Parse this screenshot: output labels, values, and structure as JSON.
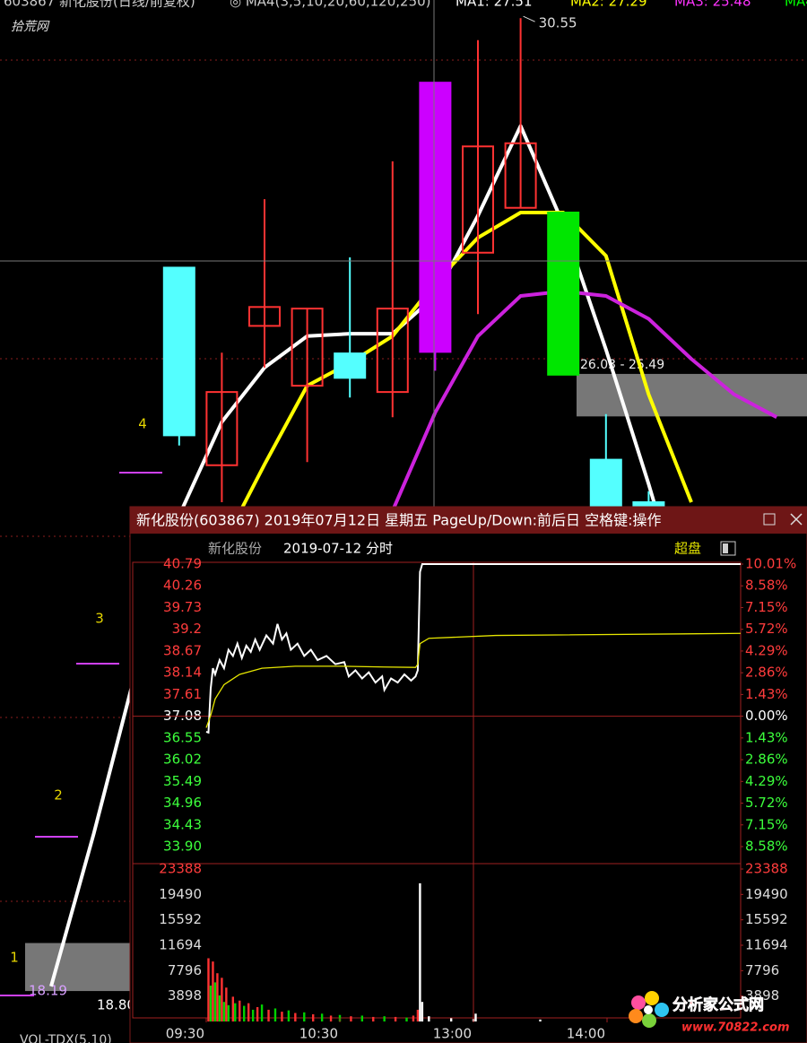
{
  "header": {
    "stock": "603867 新化股份(日线/前复权)",
    "params": "◎ MA4(3,5,10,20,60,120,250)",
    "ma1": "MA1: 27.51",
    "ma2": "MA2: 27.29",
    "ma3": "MA3: 25.48",
    "ma4": "MA4"
  },
  "watermark": "拾荒网",
  "indicator": "VOL-TDX(5,10)",
  "popup": {
    "title": "新化股份(603867) 2019年07月12日 星期五 PageUp/Down:前后日 空格键:操作",
    "stock": "新化股份",
    "date": "2019-07-12 分时",
    "button": "超盘"
  },
  "logo": {
    "name": "分析家公式网",
    "url": "www.70822.com"
  },
  "chart_data": [
    {
      "type": "candlestick",
      "categories": [
        null,
        null,
        null,
        null,
        null,
        null,
        null,
        null,
        null,
        null,
        null,
        null,
        null,
        null,
        null,
        null,
        null,
        null
      ],
      "open": [
        null,
        null,
        null,
        27.38,
        24.87,
        26.64,
        25.88,
        26.29,
        25.8,
        26.31,
        27.57,
        28.14,
        28.08,
        24.94,
        24.4,
        null,
        null,
        null
      ],
      "high": [
        null,
        null,
        null,
        27.38,
        26.3,
        28.25,
        26.86,
        27.51,
        28.73,
        29.73,
        30.27,
        30.55,
        28.08,
        25.52,
        24.54,
        null,
        null,
        null
      ],
      "low": [
        null,
        null,
        null,
        25.12,
        24.4,
        26.11,
        24.91,
        25.73,
        25.48,
        26.07,
        26.79,
        28.14,
        26.02,
        24.2,
        23.8,
        null,
        null,
        null
      ],
      "close": [
        null,
        null,
        null,
        25.25,
        25.8,
        26.88,
        26.86,
        25.98,
        26.86,
        29.73,
        28.92,
        28.96,
        26.02,
        24.2,
        23.9,
        null,
        null,
        null
      ],
      "candle_colors": [
        null,
        null,
        null,
        "#54ffff",
        "#ff3232",
        "#ff3232",
        "#ff3232",
        "#54ffff",
        "#ff3232",
        "#cc00ff",
        "#ff3232",
        "#ff3232",
        "#00e600",
        "#54ffff",
        "#54ffff",
        null,
        null,
        null
      ],
      "series": [
        {
          "color": "#ffffff",
          "values": [
            18.25,
            20.19,
            22.29,
            24.23,
            25.42,
            26.11,
            26.51,
            26.54,
            26.54,
            27.02,
            28.04,
            29.18,
            27.93,
            26.34,
            24.63,
            22.8,
            null,
            null
          ]
        },
        {
          "color": "#ffff00",
          "values": [
            null,
            null,
            null,
            null,
            23.83,
            24.88,
            25.88,
            26.17,
            26.51,
            27.19,
            27.76,
            28.08,
            28.08,
            27.53,
            25.77,
            24.4,
            null,
            null
          ]
        },
        {
          "color": "#cc22dd",
          "values": [
            null,
            null,
            null,
            null,
            null,
            null,
            null,
            null,
            24.29,
            25.54,
            26.51,
            27.02,
            27.08,
            27.02,
            26.73,
            26.22,
            25.77,
            25.48
          ]
        }
      ],
      "ylim": [
        17.53,
        30.78
      ],
      "annotations": [
        {
          "text": "30.55",
          "value": 30.55
        }
      ],
      "zones": [
        {
          "high": 26.03,
          "low": 25.49,
          "label": "26.03 - 25.49"
        },
        {
          "high": 18.8,
          "low": 18.19,
          "label_low": "18.19",
          "label_high": "18.80"
        }
      ],
      "markers": [
        {
          "label": "1"
        },
        {
          "label": "2"
        },
        {
          "label": "3"
        },
        {
          "label": "4"
        }
      ]
    },
    {
      "type": "line",
      "series": [
        {
          "color": "#ffffff",
          "x": [
            0,
            1,
            2,
            3,
            4,
            6,
            8,
            10,
            12,
            14,
            16,
            18,
            20,
            22,
            24,
            27,
            30,
            32,
            34,
            36,
            38,
            41,
            44,
            47,
            50,
            54,
            58,
            62,
            64,
            67,
            70,
            73,
            76,
            79,
            80,
            83,
            86,
            89,
            92,
            94,
            95,
            96,
            97,
            240
          ],
          "values": [
            36.7,
            36.68,
            37.75,
            38.25,
            38.1,
            38.45,
            38.25,
            38.7,
            38.55,
            38.85,
            38.5,
            38.8,
            38.65,
            38.95,
            38.7,
            39.05,
            38.85,
            39.33,
            38.95,
            39.1,
            38.7,
            38.85,
            38.55,
            38.7,
            38.45,
            38.55,
            38.35,
            38.4,
            38.05,
            38.2,
            38.0,
            38.15,
            37.9,
            38.05,
            37.72,
            38.0,
            37.9,
            38.1,
            37.95,
            38.05,
            38.2,
            40.6,
            40.79,
            40.79
          ]
        },
        {
          "color": "#e6e600",
          "x": [
            0,
            2,
            4,
            8,
            15,
            25,
            40,
            60,
            80,
            94,
            95,
            96,
            100,
            130,
            240
          ],
          "values": [
            36.8,
            37.1,
            37.5,
            37.85,
            38.1,
            38.25,
            38.3,
            38.3,
            38.28,
            38.27,
            38.35,
            38.85,
            38.98,
            39.05,
            39.1
          ]
        }
      ],
      "xlim": [
        0,
        240
      ],
      "ylim": [
        33.9,
        40.79
      ],
      "prev_close": 37.08,
      "yticks": [
        40.79,
        40.26,
        39.73,
        39.2,
        {
          "value": 38.67,
          "label": "38.67"
        },
        38.14,
        37.61,
        37.08,
        36.55,
        36.02,
        35.49,
        34.96,
        34.43,
        {
          "value": 33.9,
          "label": "33.90"
        }
      ],
      "y2lim": [
        -8.58,
        10.01
      ],
      "y2ticks": [
        {
          "value": 10.01,
          "label": "10.01%"
        },
        {
          "value": 8.58,
          "label": "8.58%"
        },
        {
          "value": 7.15,
          "label": "7.15%"
        },
        {
          "value": 5.72,
          "label": "5.72%"
        },
        {
          "value": 4.29,
          "label": "4.29%"
        },
        {
          "value": 2.86,
          "label": "2.86%"
        },
        {
          "value": 1.43,
          "label": "1.43%"
        },
        {
          "value": 0,
          "label": "0.00%"
        },
        {
          "value": -1.43,
          "label": "1.43%"
        },
        {
          "value": -2.86,
          "label": "2.86%"
        },
        {
          "value": -4.29,
          "label": "4.29%"
        },
        {
          "value": -5.72,
          "label": "5.72%"
        },
        {
          "value": -7.15,
          "label": "7.15%"
        },
        {
          "value": -8.58,
          "label": "8.58%"
        }
      ]
    },
    {
      "type": "bar",
      "x": [
        1,
        2,
        3,
        4,
        5,
        6,
        7,
        8,
        9,
        10,
        12,
        13,
        15,
        17,
        19,
        21,
        23,
        25,
        28,
        31,
        34,
        37,
        40,
        44,
        48,
        52,
        56,
        60,
        65,
        70,
        75,
        80,
        85,
        90,
        93,
        95,
        96,
        97,
        100,
        110,
        120,
        121,
        150,
        200
      ],
      "values": [
        9700,
        5500,
        9200,
        6000,
        7400,
        4000,
        6700,
        3000,
        5200,
        2500,
        3800,
        2800,
        3200,
        2400,
        2800,
        1800,
        2200,
        2600,
        1800,
        2000,
        1500,
        1700,
        1300,
        1400,
        1100,
        1200,
        900,
        1000,
        800,
        900,
        700,
        800,
        700,
        600,
        900,
        1800,
        21200,
        3000,
        800,
        500,
        400,
        1200,
        300,
        300
      ],
      "colors": [
        "#ff3232",
        "#00d200",
        "#ff3232",
        "#00d200",
        "#ff3232",
        "#00d200",
        "#ff3232",
        "#00d200",
        "#ff3232",
        "#00d200",
        "#ff3232",
        "#00d200",
        "#ff3232",
        "#00d200",
        "#ff3232",
        "#00d200",
        "#ff3232",
        "#00d200",
        "#ff3232",
        "#00d200",
        "#ff3232",
        "#00d200",
        "#ff3232",
        "#00d200",
        "#ff3232",
        "#00d200",
        "#ff3232",
        "#00d200",
        "#ff3232",
        "#00d200",
        "#ff3232",
        "#00d200",
        "#ff3232",
        "#00d200",
        "#ff3232",
        "#ff3232",
        "#ffffff",
        "#ffffff",
        "#ffffff",
        "#ffffff",
        "#ffffff",
        "#ffffff",
        "#ffffff",
        "#ffffff"
      ],
      "xlim": [
        0,
        240
      ],
      "ylim": [
        0,
        23388
      ],
      "yticks": [
        23388,
        19490,
        15592,
        11694,
        7796,
        3898
      ],
      "xticks": [
        {
          "value": 0,
          "label": "09:30"
        },
        {
          "value": 60,
          "label": "10:30"
        },
        {
          "value": 120,
          "label": "13:00"
        },
        {
          "value": 180,
          "label": "14:00"
        }
      ]
    }
  ]
}
